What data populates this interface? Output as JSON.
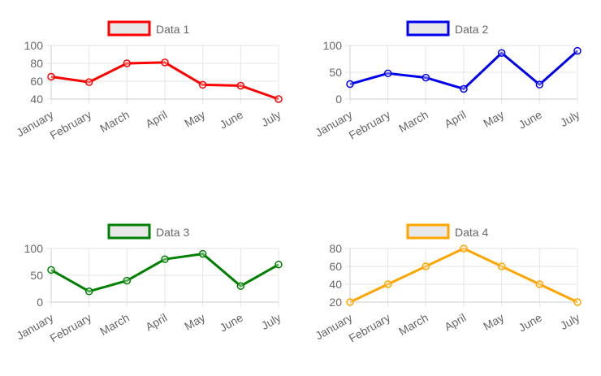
{
  "chart_data": [
    {
      "type": "line",
      "categories": [
        "January",
        "February",
        "March",
        "April",
        "May",
        "June",
        "July"
      ],
      "series": [
        {
          "name": "Data 1",
          "values": [
            65,
            59,
            80,
            81,
            56,
            55,
            40
          ]
        }
      ],
      "ylim": [
        40,
        100
      ],
      "yticks": [
        40,
        60,
        80,
        100
      ],
      "color": "#ff0000",
      "legend_position": "top",
      "grid": true
    },
    {
      "type": "line",
      "categories": [
        "January",
        "February",
        "March",
        "April",
        "May",
        "June",
        "July"
      ],
      "series": [
        {
          "name": "Data 2",
          "values": [
            28,
            48,
            40,
            19,
            86,
            27,
            90
          ]
        }
      ],
      "ylim": [
        0,
        100
      ],
      "yticks": [
        0,
        50,
        100
      ],
      "color": "#0000ee",
      "legend_position": "top",
      "grid": true
    },
    {
      "type": "line",
      "categories": [
        "January",
        "February",
        "March",
        "April",
        "May",
        "June",
        "July"
      ],
      "series": [
        {
          "name": "Data 3",
          "values": [
            60,
            20,
            40,
            80,
            90,
            30,
            70
          ]
        }
      ],
      "ylim": [
        0,
        100
      ],
      "yticks": [
        0,
        50,
        100
      ],
      "color": "#008000",
      "legend_position": "top",
      "grid": true
    },
    {
      "type": "line",
      "categories": [
        "January",
        "February",
        "March",
        "April",
        "May",
        "June",
        "July"
      ],
      "series": [
        {
          "name": "Data 4",
          "values": [
            20,
            40,
            60,
            80,
            60,
            40,
            20
          ]
        }
      ],
      "ylim": [
        20,
        80
      ],
      "yticks": [
        20,
        40,
        60,
        80
      ],
      "color": "#ffa500",
      "legend_position": "top",
      "grid": true
    }
  ],
  "legend_box_fill": "#e8e8e8"
}
